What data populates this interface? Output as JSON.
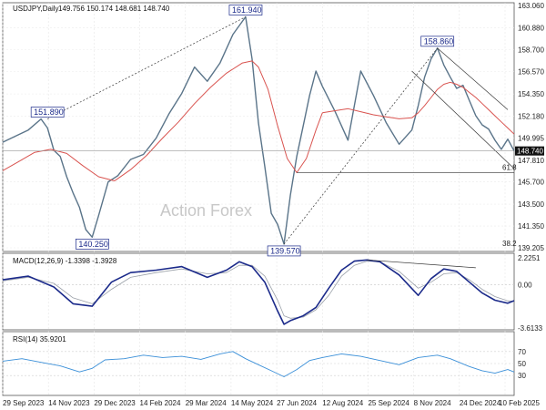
{
  "chart_data": {
    "type": "line",
    "title": "USDJPY,Daily",
    "ohlc_text": "149.756 150.174 148.681 148.740",
    "watermark": "Action Forex",
    "x_ticks": [
      "29 Sep 2023",
      "14 Nov 2023",
      "29 Dec 2023",
      "14 Feb 2024",
      "29 Mar 2024",
      "14 May 2024",
      "27 Jun 2024",
      "12 Aug 2024",
      "25 Sep 2024",
      "8 Nov 2024",
      "24 Dec 2024",
      "10 Feb 2025"
    ],
    "price_panel": {
      "ylim": [
        139.205,
        163.06
      ],
      "y_ticks": [
        "163.060",
        "160.880",
        "158.700",
        "156.570",
        "154.350",
        "152.180",
        "149.995",
        "147.810",
        "145.700",
        "143.500",
        "141.350",
        "139.205"
      ],
      "current_price": "148.740",
      "series": [
        {
          "name": "",
          "color": "#5a7489",
          "x": [
            0,
            4,
            8,
            12,
            14,
            16,
            18,
            20,
            22,
            24,
            26,
            28,
            30,
            33,
            36,
            40,
            44,
            48,
            52,
            56,
            60,
            64,
            68,
            72,
            76,
            78,
            80,
            82,
            84,
            86,
            88,
            90,
            92,
            94,
            96,
            98,
            100
          ],
          "y": [
            149.6,
            150.2,
            150.8,
            151.89,
            151.0,
            148.8,
            148.2,
            146.2,
            144.6,
            143.2,
            141.0,
            140.25,
            142.4,
            145.7,
            146.3,
            147.9,
            148.4,
            150.0,
            152.4,
            154.4,
            157.0,
            155.6,
            157.4,
            160.2,
            161.94,
            157.8,
            151.5,
            147.2,
            142.6,
            141.5,
            139.57,
            144.4,
            148.2,
            151.2,
            154.2,
            156.6,
            155.1
          ]
        },
        {
          "name": "",
          "color": "#d9534f",
          "x": [
            0,
            5,
            10,
            15,
            20,
            25,
            30,
            35,
            40,
            45,
            50,
            55,
            60,
            65,
            70,
            75,
            78,
            80,
            83,
            86,
            89,
            92,
            95,
            98,
            100
          ],
          "y": [
            146.8,
            147.7,
            148.6,
            148.9,
            148.5,
            147.3,
            146.2,
            145.8,
            146.9,
            148.3,
            150.0,
            151.6,
            153.4,
            155.0,
            156.4,
            157.4,
            157.6,
            157.0,
            154.8,
            151.2,
            148.0,
            146.6,
            148.0,
            150.8,
            152.5
          ]
        }
      ],
      "series2": {
        "x": [
          100,
          104,
          108,
          112,
          116,
          120,
          124,
          128,
          130,
          132,
          134,
          136,
          138,
          140,
          142,
          144,
          146,
          148,
          150,
          152,
          154,
          156,
          158,
          160
        ],
        "price": [
          155.1,
          152.6,
          149.8,
          156.6,
          154.2,
          151.5,
          149.4,
          150.8,
          153.2,
          156.0,
          157.8,
          158.86,
          157.2,
          156.0,
          154.9,
          155.2,
          153.7,
          152.2,
          151.3,
          150.9,
          149.8,
          148.9,
          149.9,
          148.74
        ],
        "ma": [
          152.5,
          152.7,
          152.9,
          152.6,
          152.3,
          152.1,
          151.9,
          152.0,
          152.5,
          153.2,
          154.0,
          154.8,
          155.3,
          155.5,
          155.3,
          155.0,
          154.5,
          154.0,
          153.4,
          152.8,
          152.2,
          151.6,
          151.0,
          150.4
        ]
      },
      "annotations": [
        {
          "text": "151.890",
          "x": 14,
          "y": 151.89
        },
        {
          "text": "140.250",
          "x": 28,
          "y": 140.25
        },
        {
          "text": "161.940",
          "x": 76,
          "y": 161.94
        },
        {
          "text": "139.570",
          "x": 88,
          "y": 139.57
        },
        {
          "text": "158.860",
          "x": 136,
          "y": 158.86
        }
      ],
      "fib_labels": [
        "61.8",
        "38.2"
      ]
    },
    "macd_panel": {
      "label": "MACD(12,26,9) -1.3398 -1.3928",
      "ylim": [
        -3.6133,
        2.2251
      ],
      "y_ticks": [
        "2.2251",
        "0.00",
        "-3.6133"
      ],
      "x": [
        0,
        8,
        16,
        22,
        28,
        34,
        40,
        48,
        56,
        64,
        70,
        74,
        78,
        82,
        86,
        88,
        90,
        94,
        98,
        102,
        106,
        110,
        114,
        118,
        124,
        130,
        134,
        138,
        142,
        146,
        150,
        154,
        158,
        160
      ],
      "macd": [
        0.4,
        0.7,
        -0.2,
        -1.6,
        -1.8,
        0.2,
        1.0,
        1.2,
        1.5,
        0.6,
        1.2,
        1.9,
        1.5,
        0.2,
        -2.2,
        -3.3,
        -3.0,
        -2.6,
        -1.9,
        -0.3,
        1.2,
        1.95,
        2.05,
        1.9,
        0.8,
        -0.9,
        0.5,
        1.3,
        1.1,
        0.2,
        -0.7,
        -1.3,
        -1.55,
        -1.34
      ],
      "signal": [
        0.3,
        0.6,
        0.1,
        -1.1,
        -1.6,
        -0.4,
        0.6,
        1.0,
        1.3,
        0.9,
        1.0,
        1.6,
        1.6,
        0.7,
        -1.3,
        -2.6,
        -2.8,
        -2.7,
        -2.1,
        -0.9,
        0.7,
        1.6,
        1.95,
        1.9,
        1.1,
        -0.3,
        0.2,
        0.9,
        1.0,
        0.4,
        -0.4,
        -1.0,
        -1.35,
        -1.39
      ]
    },
    "rsi_panel": {
      "label": "RSI(14) 35.9201",
      "ylim": [
        0,
        100
      ],
      "y_ticks": [
        "70",
        "50",
        "30"
      ],
      "x": [
        0,
        6,
        12,
        18,
        24,
        28,
        32,
        38,
        44,
        50,
        56,
        62,
        68,
        72,
        76,
        80,
        84,
        88,
        92,
        96,
        100,
        106,
        112,
        118,
        124,
        130,
        136,
        140,
        146,
        150,
        154,
        158,
        160
      ],
      "values": [
        54,
        58,
        52,
        46,
        36,
        42,
        56,
        58,
        64,
        60,
        62,
        57,
        66,
        70,
        58,
        48,
        38,
        28,
        40,
        55,
        60,
        66,
        62,
        55,
        48,
        60,
        64,
        58,
        45,
        38,
        34,
        40,
        35.9
      ]
    }
  }
}
